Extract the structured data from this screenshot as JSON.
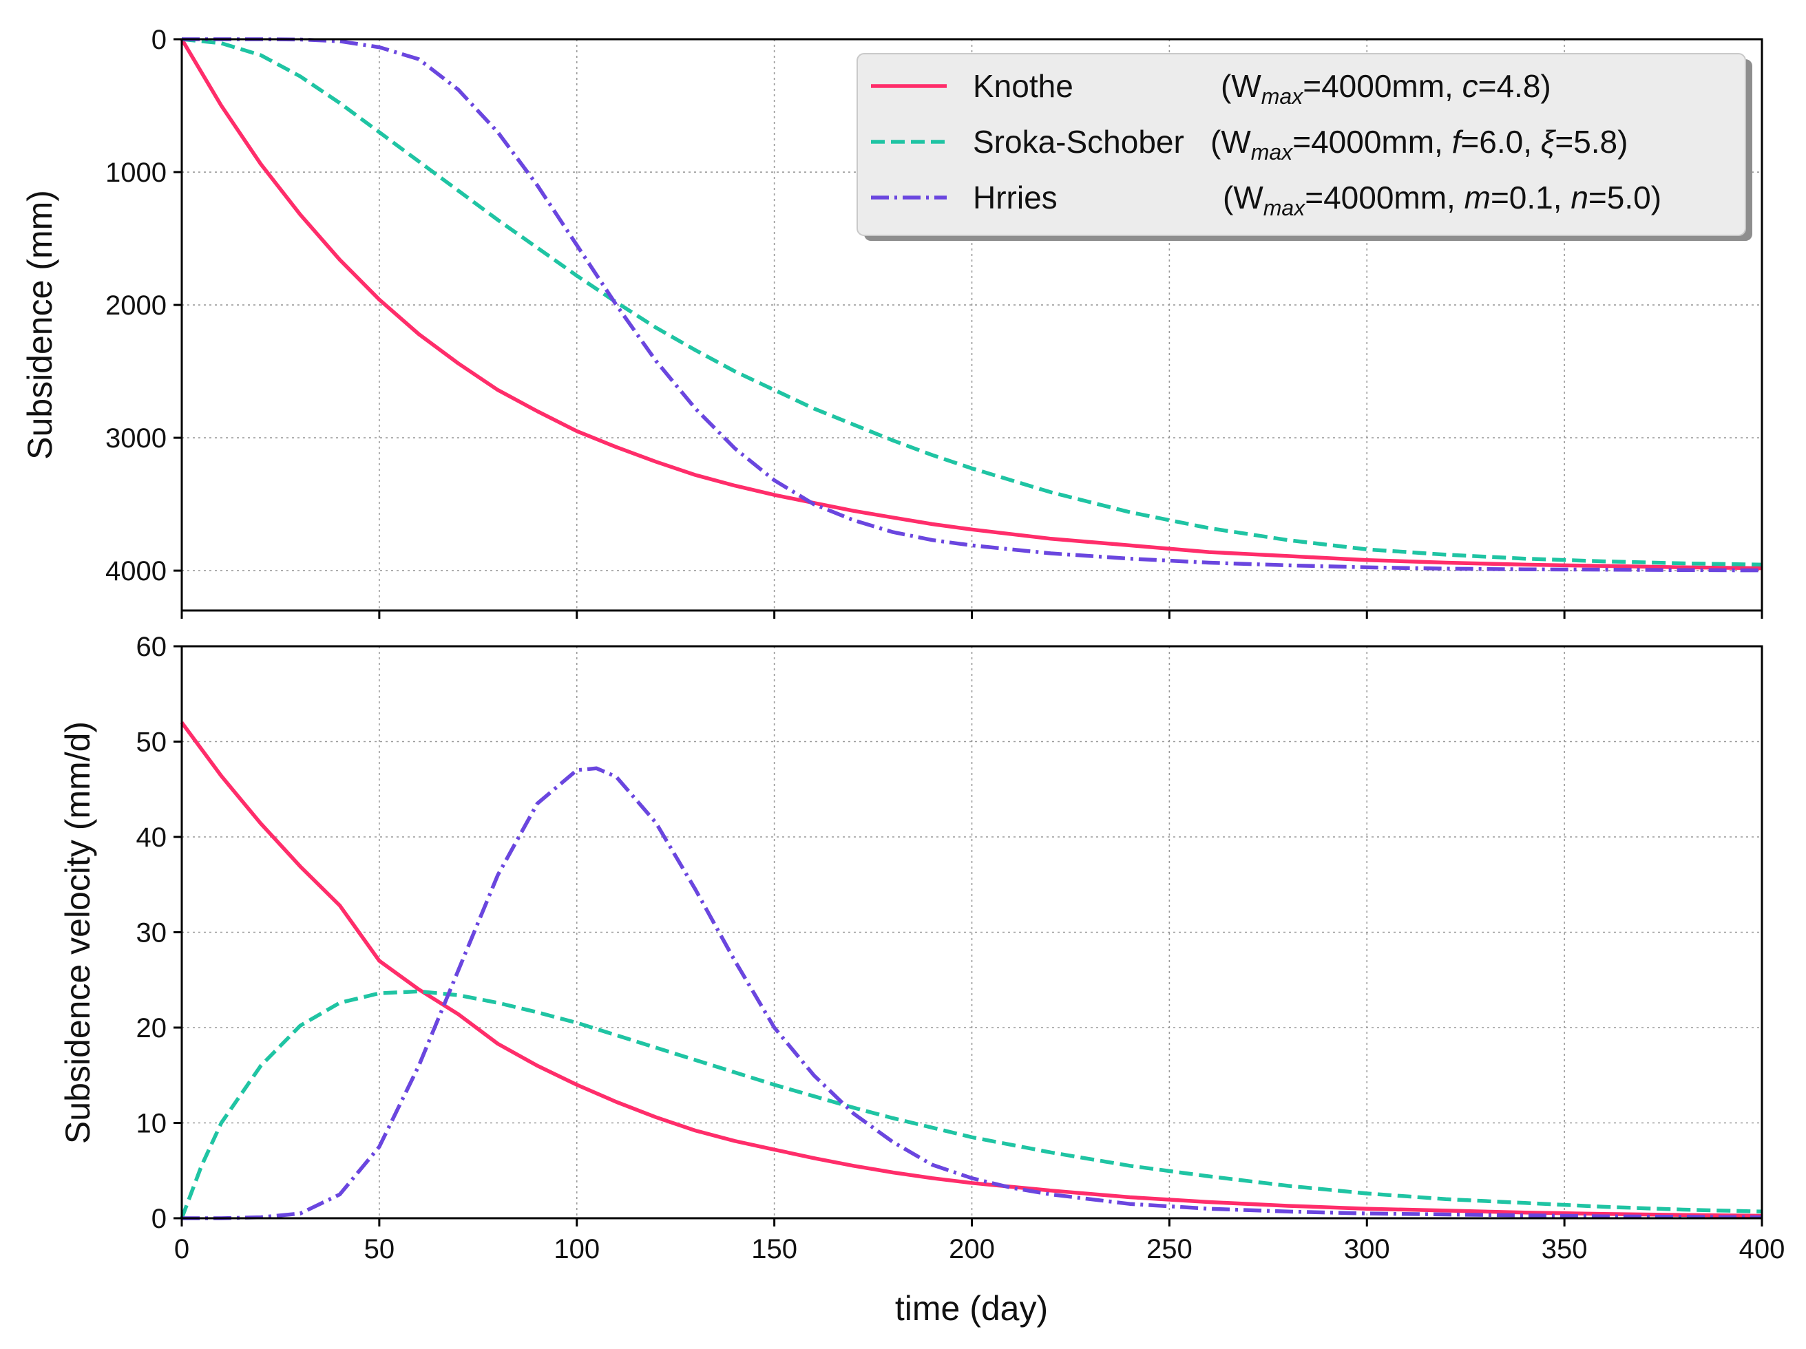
{
  "chart_data": [
    {
      "type": "line",
      "panel": "top",
      "ylabel": "Subsidence (mm)",
      "xlim": [
        0,
        400
      ],
      "ylim": [
        4300,
        0
      ],
      "yticks": [
        0,
        1000,
        2000,
        3000,
        4000
      ],
      "xticks": [
        0,
        50,
        100,
        150,
        200,
        250,
        300,
        350,
        400
      ],
      "grid": true,
      "legend_position": "top-right",
      "series": [
        {
          "name": "Knothe",
          "params_prefix": "(W",
          "params_sub": "max",
          "params_mid": "=4000mm, ",
          "p1_sym": "c",
          "p1_val": "=4.8)",
          "color": "#ff2d6a",
          "style": "solid",
          "x": [
            0,
            10,
            20,
            30,
            40,
            50,
            60,
            70,
            80,
            90,
            100,
            110,
            120,
            130,
            140,
            150,
            160,
            170,
            180,
            190,
            200,
            220,
            240,
            260,
            280,
            300,
            320,
            340,
            360,
            380,
            400
          ],
          "y": [
            0,
            500,
            940,
            1320,
            1660,
            1960,
            2220,
            2440,
            2640,
            2800,
            2950,
            3070,
            3180,
            3280,
            3360,
            3430,
            3490,
            3550,
            3600,
            3650,
            3690,
            3760,
            3810,
            3860,
            3890,
            3920,
            3940,
            3955,
            3965,
            3975,
            3982
          ]
        },
        {
          "name": "Sroka-Schober",
          "params_prefix": "(W",
          "params_sub": "max",
          "params_mid": "=4000mm, ",
          "p1_sym": "f",
          "p1_val": "=6.0, ",
          "p2_sym": "ξ",
          "p2_val": "=5.8)",
          "color": "#1fc4a3",
          "style": "dashed",
          "x": [
            0,
            10,
            20,
            30,
            40,
            50,
            60,
            70,
            80,
            90,
            100,
            110,
            120,
            130,
            140,
            150,
            160,
            170,
            180,
            190,
            200,
            220,
            240,
            260,
            280,
            300,
            320,
            340,
            360,
            380,
            400
          ],
          "y": [
            0,
            30,
            120,
            280,
            480,
            700,
            920,
            1140,
            1360,
            1570,
            1780,
            1980,
            2170,
            2340,
            2500,
            2640,
            2780,
            2900,
            3020,
            3130,
            3230,
            3410,
            3560,
            3680,
            3770,
            3840,
            3880,
            3910,
            3930,
            3945,
            3955
          ]
        },
        {
          "name": "Hrries",
          "params_prefix": "(W",
          "params_sub": "max",
          "params_mid": "=4000mm, ",
          "p1_sym": "m",
          "p1_val": "=0.1, ",
          "p2_sym": "n",
          "p2_val": "=5.0)",
          "color": "#6a46df",
          "style": "dashdot",
          "x": [
            0,
            10,
            20,
            30,
            40,
            50,
            60,
            70,
            80,
            90,
            100,
            110,
            120,
            130,
            140,
            150,
            160,
            170,
            180,
            190,
            200,
            220,
            240,
            260,
            280,
            300,
            320,
            340,
            360,
            380,
            400
          ],
          "y": [
            0,
            0,
            0,
            2,
            15,
            60,
            150,
            380,
            700,
            1100,
            1550,
            2000,
            2420,
            2780,
            3080,
            3320,
            3500,
            3620,
            3710,
            3770,
            3810,
            3870,
            3910,
            3940,
            3960,
            3975,
            3985,
            3990,
            3993,
            3996,
            3998
          ]
        }
      ]
    },
    {
      "type": "line",
      "panel": "bottom",
      "ylabel": "Subsidence velocity (mm/d)",
      "xlabel": "time (day)",
      "xlim": [
        0,
        400
      ],
      "ylim": [
        0,
        60
      ],
      "yticks": [
        0,
        10,
        20,
        30,
        40,
        50,
        60
      ],
      "xticks": [
        0,
        50,
        100,
        150,
        200,
        250,
        300,
        350,
        400
      ],
      "grid": true,
      "series": [
        {
          "name": "Knothe",
          "color": "#ff2d6a",
          "style": "solid",
          "x": [
            0,
            10,
            20,
            30,
            40,
            50,
            60,
            70,
            80,
            90,
            100,
            110,
            120,
            130,
            140,
            150,
            160,
            170,
            180,
            190,
            200,
            220,
            240,
            260,
            280,
            300,
            320,
            340,
            360,
            380,
            400
          ],
          "y": [
            52,
            46.4,
            41.4,
            36.9,
            32.8,
            27.0,
            24.0,
            21.4,
            18.3,
            16.0,
            14.0,
            12.2,
            10.6,
            9.2,
            8.1,
            7.2,
            6.3,
            5.5,
            4.8,
            4.2,
            3.7,
            2.9,
            2.2,
            1.7,
            1.3,
            1.0,
            0.8,
            0.6,
            0.45,
            0.35,
            0.25
          ]
        },
        {
          "name": "Sroka-Schober",
          "color": "#1fc4a3",
          "style": "dashed",
          "x": [
            0,
            5,
            10,
            20,
            30,
            40,
            50,
            60,
            70,
            80,
            90,
            100,
            110,
            120,
            130,
            140,
            150,
            160,
            170,
            180,
            190,
            200,
            220,
            240,
            260,
            280,
            300,
            320,
            340,
            360,
            380,
            400
          ],
          "y": [
            0,
            5.5,
            10,
            16,
            20.2,
            22.6,
            23.6,
            23.8,
            23.4,
            22.6,
            21.6,
            20.5,
            19.2,
            17.9,
            16.6,
            15.3,
            14.0,
            12.8,
            11.6,
            10.5,
            9.5,
            8.5,
            6.9,
            5.5,
            4.4,
            3.4,
            2.6,
            2.0,
            1.6,
            1.2,
            0.9,
            0.7
          ]
        },
        {
          "name": "Hrries",
          "color": "#6a46df",
          "style": "dashdot",
          "x": [
            0,
            10,
            20,
            30,
            40,
            50,
            60,
            70,
            80,
            90,
            100,
            105,
            110,
            120,
            130,
            140,
            150,
            160,
            170,
            180,
            190,
            200,
            210,
            220,
            240,
            260,
            280,
            300,
            320,
            340,
            360,
            380,
            400
          ],
          "y": [
            0,
            0,
            0.1,
            0.5,
            2.5,
            7.5,
            16,
            26,
            36,
            43.5,
            47,
            47.2,
            46.3,
            41.5,
            34.5,
            27,
            20,
            15,
            11,
            8,
            5.6,
            4.2,
            3.2,
            2.5,
            1.5,
            1.0,
            0.7,
            0.5,
            0.4,
            0.3,
            0.2,
            0.15,
            0.1
          ]
        }
      ]
    }
  ]
}
